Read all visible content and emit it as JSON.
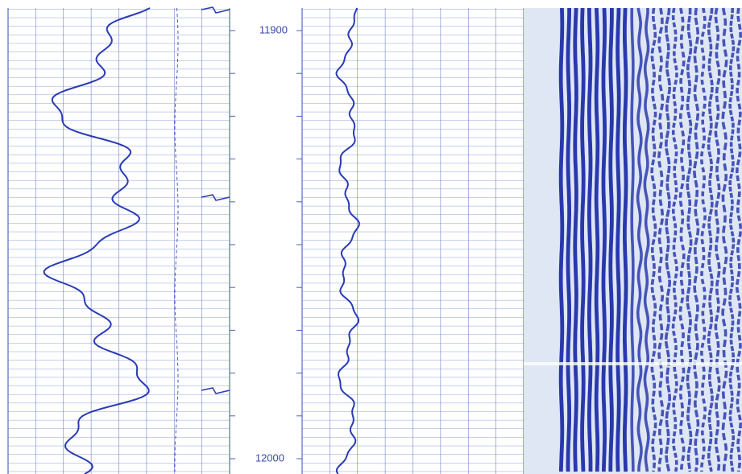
{
  "depth_labels": [
    "11900",
    "12000"
  ]
}
